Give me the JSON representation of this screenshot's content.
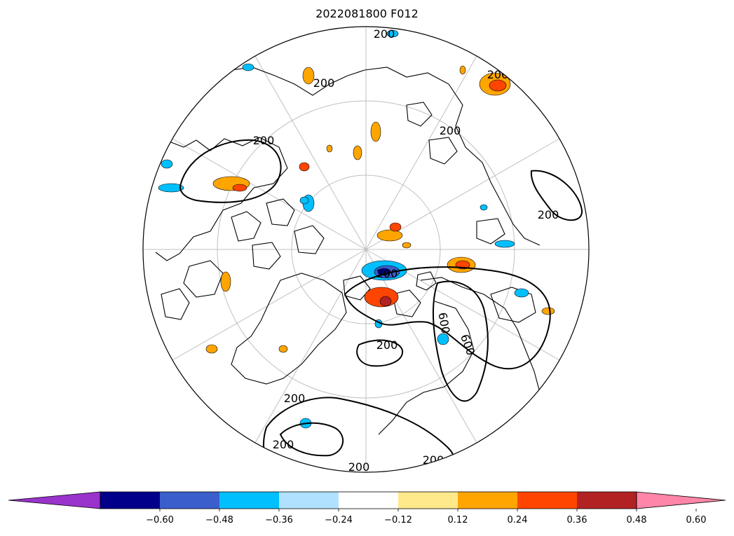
{
  "title": "2022081800 F012",
  "map": {
    "projection": "north polar stereographic",
    "contour_labels": [
      "200",
      "200",
      "200",
      "200",
      "200",
      "200",
      "200",
      "200",
      "200",
      "200",
      "200",
      "200",
      "600",
      "600"
    ]
  },
  "colorbar": {
    "extend": "both",
    "ticks": [
      "−0.60",
      "−0.48",
      "−0.36",
      "−0.24",
      "−0.12",
      "0.12",
      "0.24",
      "0.36",
      "0.48",
      "0.60"
    ],
    "colors": [
      "#9933cc",
      "#00008b",
      "#3a5fcd",
      "#00bfff",
      "#b0e2ff",
      "#ffffff",
      "#ffe98a",
      "#ffa500",
      "#ff4500",
      "#b22222",
      "#ff86a8"
    ]
  }
}
